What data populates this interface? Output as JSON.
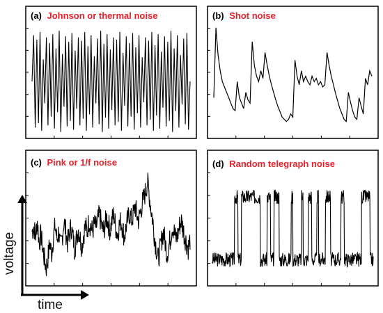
{
  "colors": {
    "title": "#e8202a",
    "label": "#000000",
    "trace": "#000000",
    "frame": "#000000"
  },
  "axes": {
    "ylabel": "voltage",
    "xlabel": "time"
  },
  "chart_data": [
    {
      "type": "line",
      "panel": "(a)",
      "title": "Johnson or thermal noise",
      "grid": false,
      "ylim": [
        0,
        1
      ],
      "description_of_signal": "",
      "series": [
        {
          "values": [
            0.5,
            0.92,
            0.08,
            0.88,
            0.12,
            0.95,
            0.05,
            0.7,
            0.3,
            0.9,
            0.1,
            0.85,
            0.18,
            0.93,
            0.07,
            0.8,
            0.22,
            0.96,
            0.04,
            0.75,
            0.27,
            0.91,
            0.09,
            0.86,
            0.14,
            0.94,
            0.06,
            0.78,
            0.25,
            0.9,
            0.1,
            0.87,
            0.16,
            0.95,
            0.05,
            0.82,
            0.2,
            0.92,
            0.08,
            0.73,
            0.3,
            0.89,
            0.11,
            0.96,
            0.04,
            0.84,
            0.17,
            0.93,
            0.07,
            0.79,
            0.24,
            0.9,
            0.1,
            0.88,
            0.13,
            0.95,
            0.05,
            0.76,
            0.28,
            0.91,
            0.09,
            0.85,
            0.18,
            0.94,
            0.06,
            0.81,
            0.21,
            0.92,
            0.08,
            0.72,
            0.31,
            0.9,
            0.1,
            0.87,
            0.15,
            0.95,
            0.05,
            0.83,
            0.19,
            0.93,
            0.07,
            0.77,
            0.26,
            0.91,
            0.09,
            0.86,
            0.14,
            0.96,
            0.04,
            0.8,
            0.23,
            0.92,
            0.08,
            0.74,
            0.29,
            0.89,
            0.11,
            0.94,
            0.06,
            0.5
          ]
        }
      ]
    },
    {
      "type": "line",
      "panel": "(b)",
      "title": "Shot noise",
      "grid": false,
      "ylim": [
        0,
        1
      ],
      "series": [
        {
          "values": [
            0.3,
            0.95,
            0.7,
            0.55,
            0.45,
            0.4,
            0.35,
            0.3,
            0.25,
            0.2,
            0.18,
            0.45,
            0.3,
            0.25,
            0.2,
            0.35,
            0.28,
            0.25,
            0.82,
            0.6,
            0.5,
            0.45,
            0.55,
            0.48,
            0.72,
            0.6,
            0.5,
            0.42,
            0.35,
            0.28,
            0.22,
            0.17,
            0.12,
            0.1,
            0.08,
            0.1,
            0.15,
            0.12,
            0.65,
            0.5,
            0.42,
            0.55,
            0.45,
            0.5,
            0.45,
            0.42,
            0.5,
            0.45,
            0.48,
            0.42,
            0.45,
            0.4,
            0.42,
            0.72,
            0.6,
            0.5,
            0.42,
            0.34,
            0.27,
            0.2,
            0.15,
            0.1,
            0.08,
            0.35,
            0.26,
            0.18,
            0.12,
            0.1,
            0.3,
            0.22,
            0.15,
            0.48,
            0.42,
            0.55,
            0.5
          ]
        }
      ]
    },
    {
      "type": "line",
      "panel": "(c)",
      "title": "Pink or 1/f noise",
      "grid": false,
      "ylim": [
        0,
        1
      ],
      "series": [
        {
          "values": [
            0.45,
            0.5,
            0.4,
            0.55,
            0.35,
            0.42,
            0.3,
            0.2,
            0.12,
            0.22,
            0.35,
            0.25,
            0.4,
            0.5,
            0.38,
            0.45,
            0.3,
            0.4,
            0.55,
            0.45,
            0.35,
            0.42,
            0.5,
            0.4,
            0.3,
            0.38,
            0.48,
            0.4,
            0.32,
            0.42,
            0.5,
            0.45,
            0.55,
            0.5,
            0.45,
            0.52,
            0.48,
            0.55,
            0.6,
            0.52,
            0.45,
            0.5,
            0.58,
            0.52,
            0.46,
            0.55,
            0.6,
            0.5,
            0.42,
            0.5,
            0.55,
            0.48,
            0.4,
            0.5,
            0.56,
            0.62,
            0.55,
            0.6,
            0.68,
            0.6,
            0.55,
            0.62,
            0.7,
            0.75,
            0.82,
            0.9,
            0.78,
            0.65,
            0.55,
            0.4,
            0.3,
            0.2,
            0.28,
            0.38,
            0.45,
            0.35,
            0.25,
            0.32,
            0.4,
            0.5,
            0.45,
            0.38,
            0.42,
            0.5,
            0.55,
            0.48,
            0.4,
            0.35,
            0.3,
            0.38
          ]
        }
      ]
    },
    {
      "type": "line",
      "panel": "(d)",
      "title": "Random telegraph noise",
      "grid": false,
      "ylim": [
        0,
        1
      ],
      "series": [
        {
          "states": [
            0,
            0,
            0,
            0,
            0,
            0,
            0,
            0,
            0,
            0,
            0,
            0,
            0,
            1,
            1,
            0,
            0,
            1,
            1,
            1,
            1,
            1,
            1,
            1,
            1,
            1,
            1,
            1,
            0,
            0,
            0,
            0,
            1,
            1,
            0,
            0,
            1,
            1,
            1,
            0,
            0,
            0,
            0,
            0,
            0,
            0,
            1,
            0,
            0,
            0,
            0,
            0,
            1,
            0,
            0,
            0,
            1,
            1,
            0,
            0,
            0,
            1,
            0,
            0,
            0,
            0,
            1,
            1,
            1,
            0,
            0,
            0,
            0,
            0,
            0,
            1,
            1,
            0,
            0,
            0,
            0,
            0,
            0,
            0,
            0,
            0,
            0,
            1,
            1,
            1,
            1,
            1,
            0,
            0
          ]
        }
      ]
    }
  ]
}
